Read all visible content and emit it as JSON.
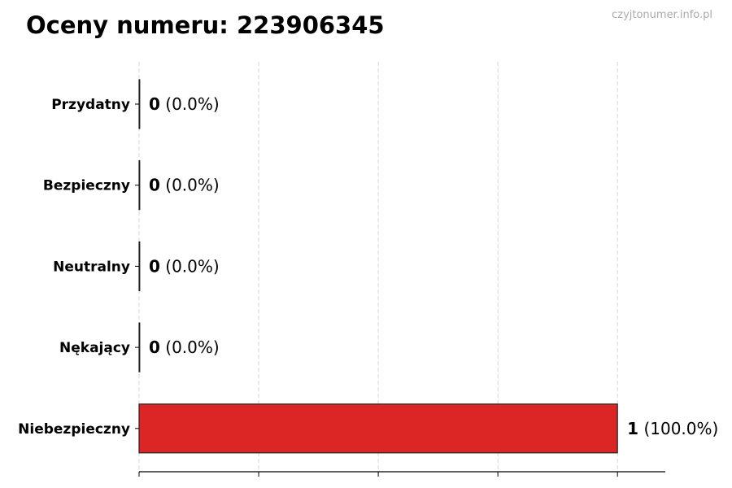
{
  "chart_data": {
    "type": "bar",
    "orientation": "horizontal",
    "title": "Oceny numeru: 223906345",
    "watermark": "czyjtonumer.info.pl",
    "categories": [
      "Przydatny",
      "Bezpieczny",
      "Neutralny",
      "Nękający",
      "Niebezpieczny"
    ],
    "values": [
      0,
      0,
      0,
      0,
      1
    ],
    "value_labels": [
      "0",
      "0",
      "0",
      "0",
      "1"
    ],
    "percent_labels": [
      "(0.0%)",
      "(0.0%)",
      "(0.0%)",
      "(0.0%)",
      "(100.0%)"
    ],
    "bar_color": "#dc2626",
    "xlim": [
      0,
      1.1
    ],
    "x_ticks": [
      0,
      0.25,
      0.5,
      0.75,
      1
    ],
    "x_tick_labels_shown": false,
    "grid": "vertical dashed"
  }
}
